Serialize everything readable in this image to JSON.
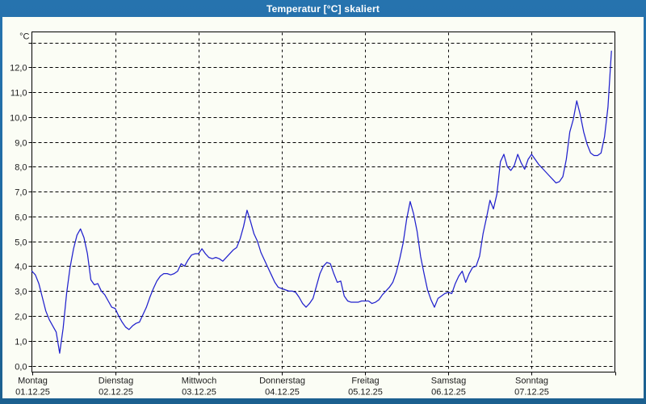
{
  "window": {
    "title": "Temperatur [°C] skaliert",
    "frame_color": "#1f6aa2",
    "content_background": "#fbfdf5"
  },
  "chart_data": {
    "type": "line",
    "title": "Temperatur [°C] skaliert",
    "unit_label": "°C",
    "line_color": "#2121cd",
    "grid": true,
    "legend": "none",
    "ylim": [
      0,
      13
    ],
    "y_tick_step": 1,
    "y_tick_labels": [
      "0,0",
      "1,0",
      "2,0",
      "3,0",
      "4,0",
      "5,0",
      "6,0",
      "7,0",
      "8,0",
      "9,0",
      "10,0",
      "11,0",
      "12,0"
    ],
    "x_days": [
      {
        "name": "Montag",
        "date": "01.12.25"
      },
      {
        "name": "Dienstag",
        "date": "02.12.25"
      },
      {
        "name": "Mittwoch",
        "date": "03.12.25"
      },
      {
        "name": "Donnerstag",
        "date": "04.12.25"
      },
      {
        "name": "Freitag",
        "date": "05.12.25"
      },
      {
        "name": "Samstag",
        "date": "06.12.25"
      },
      {
        "name": "Sonntag",
        "date": "07.12.25"
      }
    ],
    "sampling": "hourly",
    "hours_per_day": 24,
    "series": [
      {
        "name": "Temperatur",
        "values": [
          3.8,
          3.65,
          3.3,
          2.75,
          2.2,
          1.85,
          1.6,
          1.35,
          0.5,
          1.5,
          2.9,
          3.95,
          4.7,
          5.25,
          5.5,
          5.15,
          4.5,
          3.45,
          3.25,
          3.3,
          3.0,
          2.85,
          2.6,
          2.35,
          2.3,
          2.0,
          1.75,
          1.55,
          1.45,
          1.6,
          1.7,
          1.75,
          2.05,
          2.35,
          2.75,
          3.1,
          3.4,
          3.6,
          3.7,
          3.7,
          3.65,
          3.7,
          3.8,
          4.1,
          4.0,
          4.25,
          4.45,
          4.5,
          4.5,
          4.7,
          4.5,
          4.35,
          4.3,
          4.35,
          4.3,
          4.2,
          4.35,
          4.5,
          4.65,
          4.75,
          5.1,
          5.6,
          6.25,
          5.8,
          5.3,
          5.0,
          4.55,
          4.25,
          3.95,
          3.65,
          3.35,
          3.15,
          3.1,
          3.05,
          3.0,
          3.0,
          2.95,
          2.75,
          2.5,
          2.35,
          2.5,
          2.7,
          3.2,
          3.7,
          4.0,
          4.15,
          4.1,
          3.7,
          3.35,
          3.4,
          2.8,
          2.6,
          2.55,
          2.55,
          2.55,
          2.6,
          2.6,
          2.6,
          2.5,
          2.55,
          2.65,
          2.85,
          3.0,
          3.15,
          3.35,
          3.75,
          4.3,
          4.95,
          5.9,
          6.6,
          6.1,
          5.4,
          4.4,
          3.7,
          3.05,
          2.65,
          2.35,
          2.7,
          2.8,
          2.9,
          2.95,
          2.9,
          3.3,
          3.6,
          3.8,
          3.35,
          3.7,
          3.95,
          4.0,
          4.4,
          5.3,
          5.95,
          6.65,
          6.3,
          6.9,
          8.2,
          8.5,
          8.0,
          7.85,
          8.05,
          8.5,
          8.15,
          7.9,
          8.3,
          8.5,
          8.3,
          8.1,
          7.95,
          7.8,
          7.65,
          7.5,
          7.35,
          7.4,
          7.6,
          8.3,
          9.4,
          9.9,
          10.65,
          10.1,
          9.4,
          8.9,
          8.55,
          8.45,
          8.45,
          8.55,
          9.2,
          10.4,
          12.65
        ]
      }
    ]
  }
}
